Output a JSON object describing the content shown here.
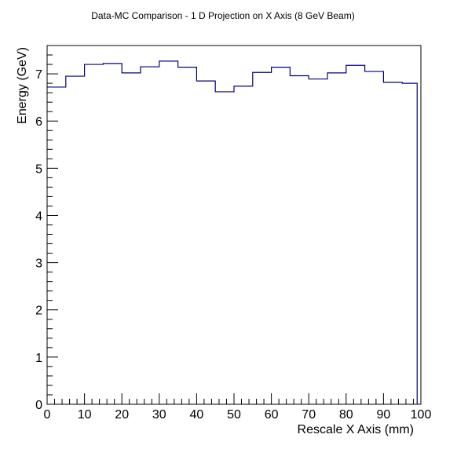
{
  "chart_data": {
    "type": "line",
    "style": "histogram-step",
    "title": "Data-MC Comparison - 1 D Projection on X Axis (8 GeV Beam)",
    "xlabel": "Rescale X Axis (mm)",
    "ylabel": "Energy (GeV)",
    "xlim": [
      0,
      100
    ],
    "ylim": [
      0,
      7.6
    ],
    "xticks": [
      "0",
      "10",
      "20",
      "30",
      "40",
      "50",
      "60",
      "70",
      "80",
      "90",
      "100"
    ],
    "yticks": [
      "0",
      "1",
      "2",
      "3",
      "4",
      "5",
      "6",
      "7"
    ],
    "grid": false,
    "legend": "none",
    "series": [
      {
        "color": "#000080",
        "bin_edges": [
          0,
          5,
          10,
          15,
          20,
          25,
          30,
          35,
          40,
          45,
          50,
          55,
          60,
          65,
          70,
          75,
          80,
          85,
          90,
          95,
          99
        ],
        "values": [
          6.72,
          6.95,
          7.2,
          7.22,
          7.02,
          7.15,
          7.27,
          7.14,
          6.85,
          6.62,
          6.74,
          7.03,
          7.14,
          6.96,
          6.89,
          7.02,
          7.18,
          7.05,
          6.82,
          6.8
        ]
      }
    ]
  }
}
